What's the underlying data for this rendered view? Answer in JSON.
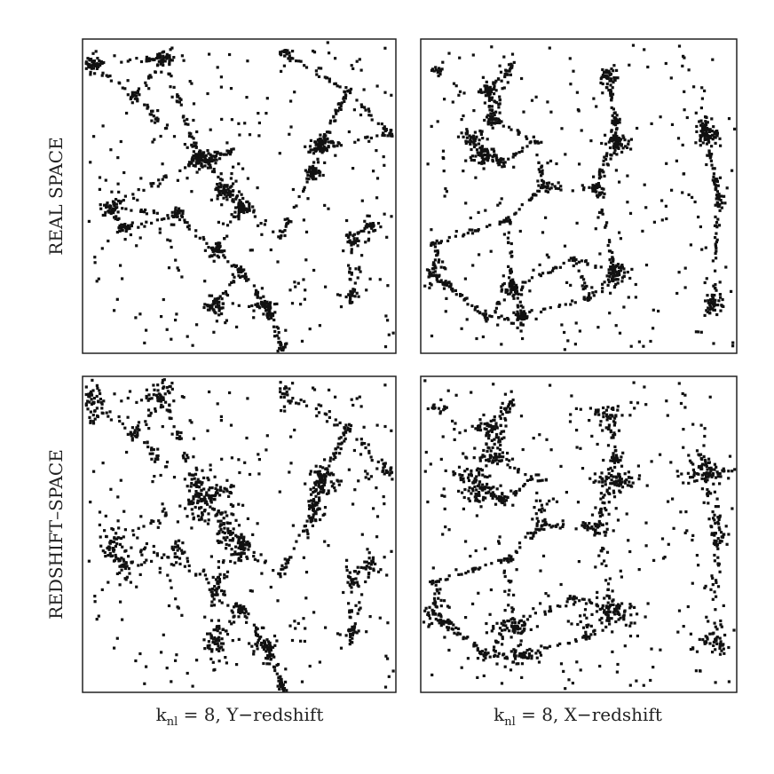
{
  "figure": {
    "rows": [
      "REAL SPACE",
      "REDSHIFT–SPACE"
    ],
    "columns": [
      {
        "symbol": "k",
        "subscript": "nl",
        "text": " = 8, Y−redshift"
      },
      {
        "symbol": "k",
        "subscript": "nl",
        "text": " = 8, X−redshift"
      }
    ]
  }
}
